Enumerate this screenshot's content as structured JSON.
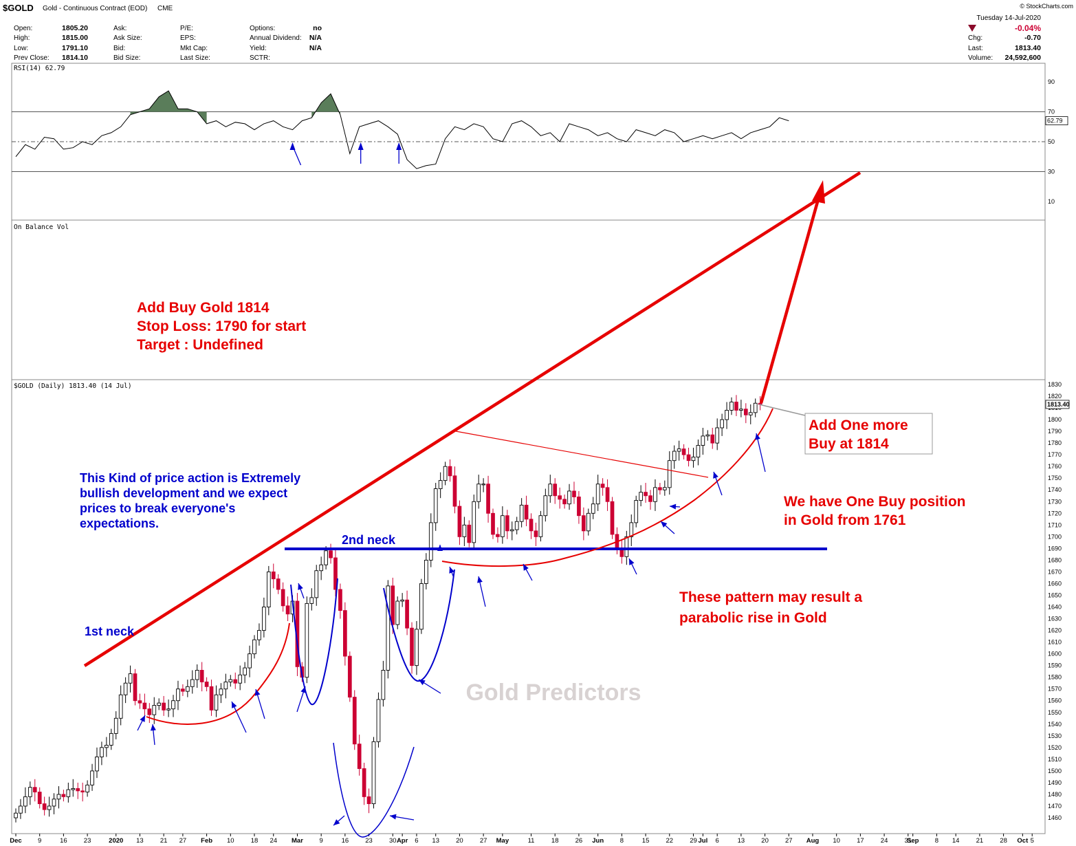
{
  "header": {
    "symbol": "$GOLD",
    "description": "Gold - Continuous Contract (EOD)",
    "exchange": "CME",
    "brand": "© StockCharts.com",
    "date": "Tuesday 14-Jul-2020",
    "change_pct": "-0.04%",
    "quote": [
      {
        "label": "Open:",
        "value": "1805.20"
      },
      {
        "label": "High:",
        "value": "1815.00"
      },
      {
        "label": "Low:",
        "value": "1791.10"
      },
      {
        "label": "Prev Close:",
        "value": "1814.10"
      }
    ],
    "col2": [
      "Ask:",
      "Ask Size:",
      "Bid:",
      "Bid Size:"
    ],
    "col3": [
      "P/E:",
      "EPS:",
      "Mkt Cap:",
      "Last Size:"
    ],
    "col4": [
      {
        "label": "Options:",
        "value": "no"
      },
      {
        "label": "Annual Dividend:",
        "value": "N/A"
      },
      {
        "label": "Yield:",
        "value": "N/A"
      },
      {
        "label": "SCTR:",
        "value": ""
      }
    ],
    "right": [
      {
        "label": "Chg:",
        "value": "-0.70"
      },
      {
        "label": "Last:",
        "value": "1813.40"
      },
      {
        "label": "Volume:",
        "value": "24,592,600"
      }
    ]
  },
  "chart_data": [
    {
      "type": "line",
      "panel": "rsi",
      "title": "RSI(14) 62.79",
      "last_label": "62.79",
      "ylim": [
        0,
        100
      ],
      "yticks": [
        10,
        30,
        50,
        70,
        90
      ],
      "x_index": [
        0,
        2,
        4,
        6,
        8,
        10,
        12,
        14,
        16,
        18,
        20,
        22,
        24,
        26,
        28,
        30,
        32,
        34,
        36,
        38,
        40,
        42,
        44,
        46,
        48,
        50,
        52,
        54,
        56,
        58,
        60,
        62,
        64,
        66,
        68,
        70,
        72,
        74,
        76,
        78,
        80,
        82,
        84,
        86,
        88,
        90,
        92,
        94,
        96,
        98,
        100,
        102,
        104,
        106,
        108,
        110,
        112,
        114,
        116,
        118,
        120,
        122,
        124,
        126,
        128,
        130,
        132,
        134,
        136,
        138,
        140,
        142,
        144,
        146,
        148,
        150,
        152,
        154,
        156,
        158,
        160,
        162
      ],
      "values": [
        40,
        48,
        45,
        53,
        52,
        45,
        46,
        50,
        48,
        54,
        56,
        60,
        68,
        70,
        72,
        80,
        84,
        72,
        72,
        70,
        62,
        64,
        60,
        63,
        62,
        58,
        62,
        64,
        60,
        58,
        64,
        66,
        76,
        82,
        68,
        42,
        60,
        62,
        64,
        60,
        55,
        38,
        32,
        34,
        35,
        52,
        60,
        58,
        62,
        60,
        52,
        50,
        62,
        64,
        60,
        54,
        56,
        50,
        62,
        60,
        58,
        54,
        56,
        52,
        50,
        58,
        56,
        54,
        58,
        56,
        50,
        52,
        54,
        52,
        54,
        56,
        52,
        56,
        58,
        60,
        66,
        64
      ],
      "arrow_x_index": [
        58,
        72,
        80
      ]
    },
    {
      "type": "line",
      "panel": "obv",
      "title": "On Balance Vol"
    },
    {
      "type": "candlestick",
      "panel": "price",
      "title": "$GOLD (Daily) 1813.40 (14 Jul)",
      "last_label": "1813.40",
      "ylim": [
        1455,
        1835
      ],
      "yticks": [
        1460,
        1470,
        1480,
        1490,
        1500,
        1510,
        1520,
        1530,
        1540,
        1550,
        1560,
        1570,
        1580,
        1590,
        1600,
        1610,
        1620,
        1630,
        1640,
        1650,
        1660,
        1670,
        1680,
        1690,
        1700,
        1710,
        1720,
        1730,
        1740,
        1750,
        1760,
        1770,
        1780,
        1790,
        1800,
        1810,
        1820,
        1830
      ],
      "xticks": [
        {
          "label": "Dec",
          "i": 0
        },
        {
          "label": "9",
          "i": 5
        },
        {
          "label": "16",
          "i": 10
        },
        {
          "label": "23",
          "i": 15
        },
        {
          "label": "2020",
          "i": 21
        },
        {
          "label": "13",
          "i": 26
        },
        {
          "label": "21",
          "i": 31
        },
        {
          "label": "27",
          "i": 35
        },
        {
          "label": "Feb",
          "i": 40
        },
        {
          "label": "10",
          "i": 45
        },
        {
          "label": "18",
          "i": 50
        },
        {
          "label": "24",
          "i": 54
        },
        {
          "label": "Mar",
          "i": 59
        },
        {
          "label": "9",
          "i": 64
        },
        {
          "label": "16",
          "i": 69
        },
        {
          "label": "23",
          "i": 74
        },
        {
          "label": "30",
          "i": 79
        },
        {
          "label": "Apr",
          "i": 81
        },
        {
          "label": "6",
          "i": 84
        },
        {
          "label": "13",
          "i": 88
        },
        {
          "label": "20",
          "i": 93
        },
        {
          "label": "27",
          "i": 98
        },
        {
          "label": "May",
          "i": 102
        },
        {
          "label": "11",
          "i": 108
        },
        {
          "label": "18",
          "i": 113
        },
        {
          "label": "26",
          "i": 118
        },
        {
          "label": "Jun",
          "i": 122
        },
        {
          "label": "8",
          "i": 127
        },
        {
          "label": "15",
          "i": 132
        },
        {
          "label": "22",
          "i": 137
        },
        {
          "label": "29",
          "i": 142
        },
        {
          "label": "Jul",
          "i": 144
        },
        {
          "label": "6",
          "i": 147
        },
        {
          "label": "13",
          "i": 152
        },
        {
          "label": "20",
          "i": 157
        },
        {
          "label": "27",
          "i": 162
        },
        {
          "label": "Aug",
          "i": 167
        },
        {
          "label": "10",
          "i": 172
        },
        {
          "label": "17",
          "i": 177
        },
        {
          "label": "24",
          "i": 182
        },
        {
          "label": "31",
          "i": 187
        },
        {
          "label": "Sep",
          "i": 188
        },
        {
          "label": "8",
          "i": 193
        },
        {
          "label": "14",
          "i": 197
        },
        {
          "label": "21",
          "i": 202
        },
        {
          "label": "28",
          "i": 207
        },
        {
          "label": "Oct",
          "i": 211
        },
        {
          "label": "5",
          "i": 213
        }
      ],
      "close": [
        1464,
        1470,
        1478,
        1486,
        1482,
        1472,
        1467,
        1470,
        1476,
        1480,
        1478,
        1484,
        1485,
        1483,
        1482,
        1488,
        1500,
        1512,
        1520,
        1522,
        1532,
        1545,
        1565,
        1575,
        1583,
        1560,
        1558,
        1553,
        1548,
        1556,
        1558,
        1552,
        1553,
        1560,
        1570,
        1568,
        1572,
        1578,
        1586,
        1576,
        1572,
        1552,
        1565,
        1570,
        1576,
        1578,
        1575,
        1582,
        1588,
        1600,
        1612,
        1620,
        1640,
        1670,
        1664,
        1655,
        1641,
        1634,
        1645,
        1589,
        1580,
        1643,
        1648,
        1671,
        1676,
        1688,
        1682,
        1655,
        1637,
        1598,
        1563,
        1523,
        1502,
        1478,
        1472,
        1525,
        1561,
        1586,
        1658,
        1625,
        1645,
        1646,
        1622,
        1590,
        1621,
        1660,
        1680,
        1712,
        1741,
        1748,
        1760,
        1752,
        1726,
        1700,
        1710,
        1695,
        1730,
        1745,
        1745,
        1720,
        1702,
        1700,
        1718,
        1705,
        1706,
        1713,
        1727,
        1715,
        1705,
        1700,
        1718,
        1735,
        1745,
        1735,
        1732,
        1728,
        1739,
        1734,
        1718,
        1705,
        1720,
        1728,
        1745,
        1742,
        1730,
        1702,
        1690,
        1683,
        1700,
        1712,
        1731,
        1738,
        1735,
        1730,
        1742,
        1740,
        1742,
        1765,
        1773,
        1775,
        1770,
        1765,
        1768,
        1778,
        1786,
        1787,
        1780,
        1793,
        1800,
        1808,
        1815,
        1808,
        1809,
        1804,
        1806,
        1814,
        1813
      ]
    }
  ],
  "annotations": {
    "trade_l1": "Add Buy Gold 1814",
    "trade_l2": "Stop Loss: 1790 for start",
    "trade_l3": "Target : Undefined",
    "note_l1": "This Kind of price action is Extremely",
    "note_l2": "bullish development and we expect",
    "note_l3": "prices to break everyone's",
    "note_l4": "expectations.",
    "neck1": "1st neck",
    "neck2": "2nd neck",
    "callout_l1": "Add One more",
    "callout_l2": "Buy at 1814",
    "position_l1": "We have One Buy position",
    "position_l2": "in Gold from 1761",
    "pattern_l1": "These pattern may result a",
    "pattern_l2": "parabolic rise in Gold",
    "watermark": "Gold Predictors"
  },
  "colors": {
    "up_candle": "#000000",
    "down_candle": "#cc0033",
    "trend": "#e60000",
    "neck_line": "#0000cc",
    "rsi_fill": "#5a7d5a"
  }
}
